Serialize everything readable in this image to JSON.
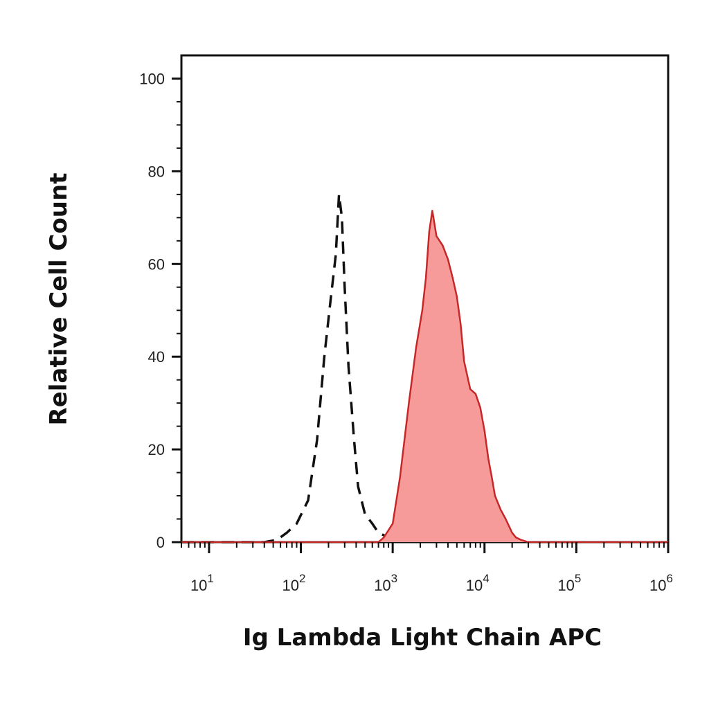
{
  "chart_data": {
    "type": "area",
    "xlabel": "Ig Lambda Light Chain APC",
    "ylabel": "Relative Cell Count",
    "x_scale": "log",
    "xlim": [
      5,
      1000000
    ],
    "ylim": [
      0,
      105
    ],
    "x_ticks": [
      {
        "base": "10",
        "exp": "1",
        "value": 10
      },
      {
        "base": "10",
        "exp": "2",
        "value": 100
      },
      {
        "base": "10",
        "exp": "3",
        "value": 1000
      },
      {
        "base": "10",
        "exp": "4",
        "value": 10000
      },
      {
        "base": "10",
        "exp": "5",
        "value": 100000
      },
      {
        "base": "10",
        "exp": "6",
        "value": 1000000
      }
    ],
    "y_ticks": [
      "0",
      "20",
      "40",
      "60",
      "80",
      "100"
    ],
    "grid": false,
    "legend": "none",
    "series": [
      {
        "style": "dashed",
        "color": "#111111",
        "x": [
          5,
          40,
          55,
          70,
          90,
          120,
          150,
          180,
          210,
          240,
          260,
          280,
          300,
          330,
          380,
          420,
          500,
          600,
          700,
          800,
          900,
          1000,
          1200
        ],
        "y": [
          0,
          0,
          0.5,
          2,
          4,
          9,
          22,
          40,
          52,
          62,
          75,
          70,
          55,
          38,
          22,
          12,
          6,
          4,
          2,
          1.5,
          1,
          0.5,
          0
        ]
      },
      {
        "style": "filled",
        "color": "#c62828",
        "fill": "#f79a9a",
        "x": [
          5,
          700,
          800,
          1000,
          1200,
          1500,
          1800,
          2100,
          2300,
          2500,
          2700,
          3000,
          3500,
          4000,
          4500,
          5000,
          5500,
          6000,
          7000,
          8000,
          9000,
          10000,
          11000,
          12000,
          13000,
          15000,
          17000,
          20000,
          22000,
          25000,
          30000,
          40000,
          1000000
        ],
        "y": [
          0,
          0,
          1,
          4,
          14,
          30,
          42,
          50,
          57,
          67,
          71.5,
          66,
          64,
          61,
          57,
          53,
          47,
          39,
          33,
          32,
          29,
          24,
          18,
          14,
          10,
          7,
          5,
          2,
          1,
          0.5,
          0,
          0,
          0
        ]
      }
    ]
  }
}
